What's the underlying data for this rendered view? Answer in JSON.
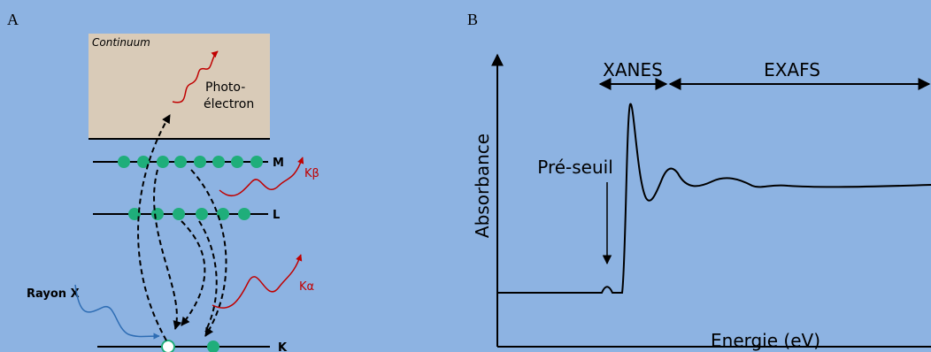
{
  "panel_a": {
    "label": "A",
    "continuum": "Continuum",
    "photoelectron": [
      "Photo-",
      "électron"
    ],
    "levels": {
      "m": "M",
      "l": "L",
      "k": "K"
    },
    "k_beta": "Kβ",
    "k_alpha": "Kα",
    "x_ray": "Rayon X"
  },
  "panel_b": {
    "label": "B",
    "xanes": "XANES",
    "exafs": "EXAFS",
    "y_axis": "Absorbance",
    "pre_edge": "Pré-seuil",
    "x_axis": "Energie (eV)"
  }
}
